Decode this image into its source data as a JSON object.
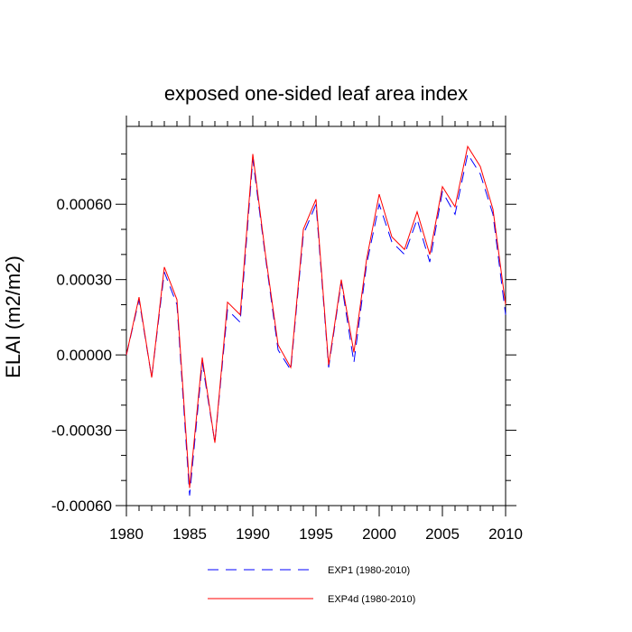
{
  "chart_data": {
    "type": "line",
    "title": "exposed one-sided leaf area index",
    "xlabel": "",
    "ylabel": "ELAI  (m2/m2)",
    "xlim": [
      1980,
      2010
    ],
    "ylim": [
      -0.0006,
      0.00091
    ],
    "x_ticks": [
      1980,
      1985,
      1990,
      1995,
      2000,
      2005,
      2010
    ],
    "x_tick_labels": [
      "1980",
      "1985",
      "1990",
      "1995",
      "2000",
      "2005",
      "2010"
    ],
    "y_ticks": [
      -0.0006,
      -0.0003,
      0.0,
      0.0003,
      0.0006
    ],
    "y_tick_labels": [
      "-0.00060",
      "-0.00030",
      "0.00000",
      "0.00030",
      "0.00060"
    ],
    "grid": false,
    "legend_position": "bottom",
    "x": [
      1980,
      1981,
      1982,
      1983,
      1984,
      1985,
      1986,
      1987,
      1988,
      1989,
      1990,
      1991,
      1992,
      1993,
      1994,
      1995,
      1996,
      1997,
      1998,
      1999,
      2000,
      2001,
      2002,
      2003,
      2004,
      2005,
      2006,
      2007,
      2008,
      2009,
      2010
    ],
    "series": [
      {
        "name": "EXP1 (1980-2010)",
        "color": "#0000ff",
        "dash": "dashed",
        "values": [
          0.0,
          0.00022,
          -9e-05,
          0.00033,
          0.0002,
          -0.00056,
          -3e-05,
          -0.00035,
          0.00018,
          0.00013,
          0.00078,
          0.00039,
          2e-05,
          -6e-05,
          0.00048,
          0.0006,
          -5e-05,
          0.00029,
          -3e-05,
          0.00036,
          0.0006,
          0.00045,
          0.0004,
          0.00054,
          0.00037,
          0.00065,
          0.00056,
          0.0008,
          0.00072,
          0.00056,
          0.00016
        ]
      },
      {
        "name": "EXP4d (1980-2010)",
        "color": "#ff0000",
        "dash": "solid",
        "values": [
          0.0,
          0.00023,
          -9e-05,
          0.00035,
          0.00022,
          -0.00053,
          -1e-05,
          -0.00035,
          0.00021,
          0.00016,
          0.0008,
          0.0004,
          4e-05,
          -5e-05,
          0.0005,
          0.00062,
          -4e-05,
          0.0003,
          1e-05,
          0.00038,
          0.00064,
          0.00047,
          0.00042,
          0.00057,
          0.0004,
          0.00067,
          0.00059,
          0.00083,
          0.00075,
          0.00058,
          0.0002
        ]
      }
    ]
  }
}
